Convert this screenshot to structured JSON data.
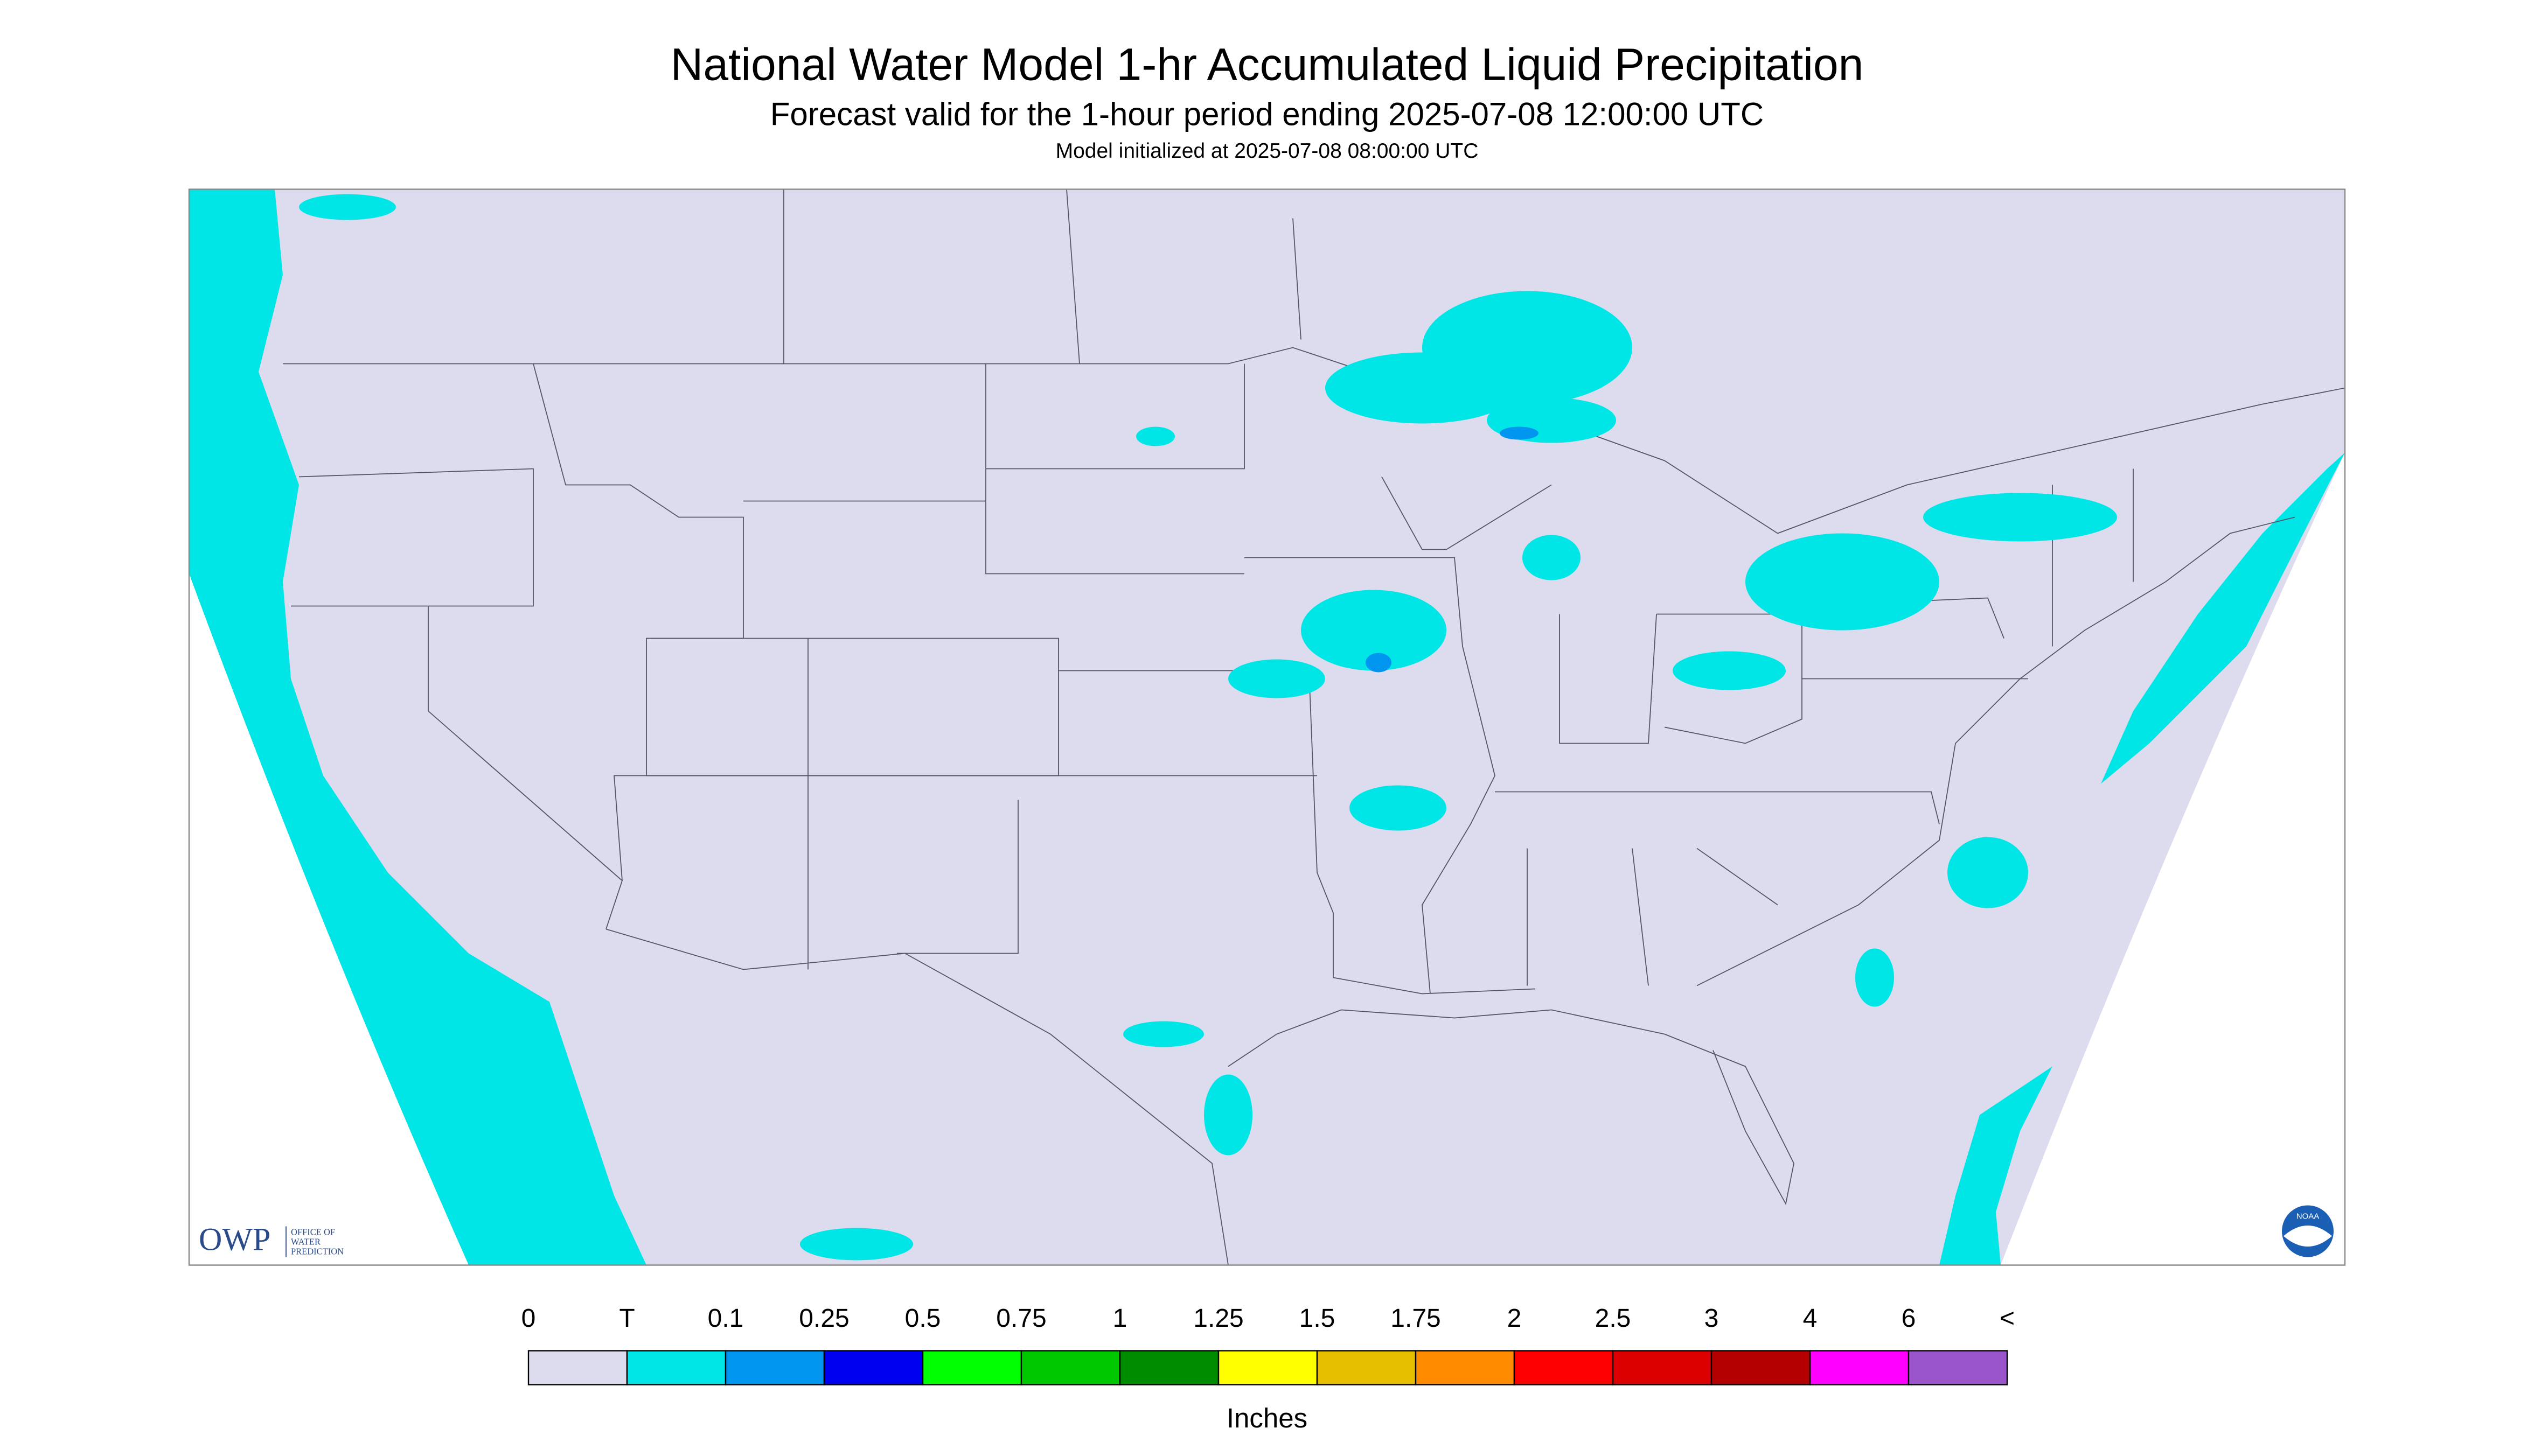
{
  "header": {
    "title": "National Water Model 1-hr Accumulated Liquid Precipitation",
    "subtitle": "Forecast valid for the 1-hour period ending 2025-07-08 12:00:00 UTC",
    "note": "Model initialized at 2025-07-08 08:00:00 UTC"
  },
  "legend": {
    "labels": [
      "0",
      "T",
      "0.1",
      "0.25",
      "0.5",
      "0.75",
      "1",
      "1.25",
      "1.5",
      "1.75",
      "2",
      "2.5",
      "3",
      "4",
      "6",
      "<"
    ],
    "colors": [
      "#dcdcee",
      "#00e6e6",
      "#0096f0",
      "#0000f0",
      "#00ff00",
      "#00c800",
      "#008c00",
      "#ffff00",
      "#e6be00",
      "#ff8c00",
      "#ff0000",
      "#dc0000",
      "#b40000",
      "#ff00ff",
      "#9955c9"
    ],
    "unit": "Inches"
  },
  "logos": {
    "owp": "OWP",
    "owp_text": [
      "OFFICE OF",
      "WATER",
      "PREDICTION"
    ],
    "noaa": "NOAA"
  }
}
